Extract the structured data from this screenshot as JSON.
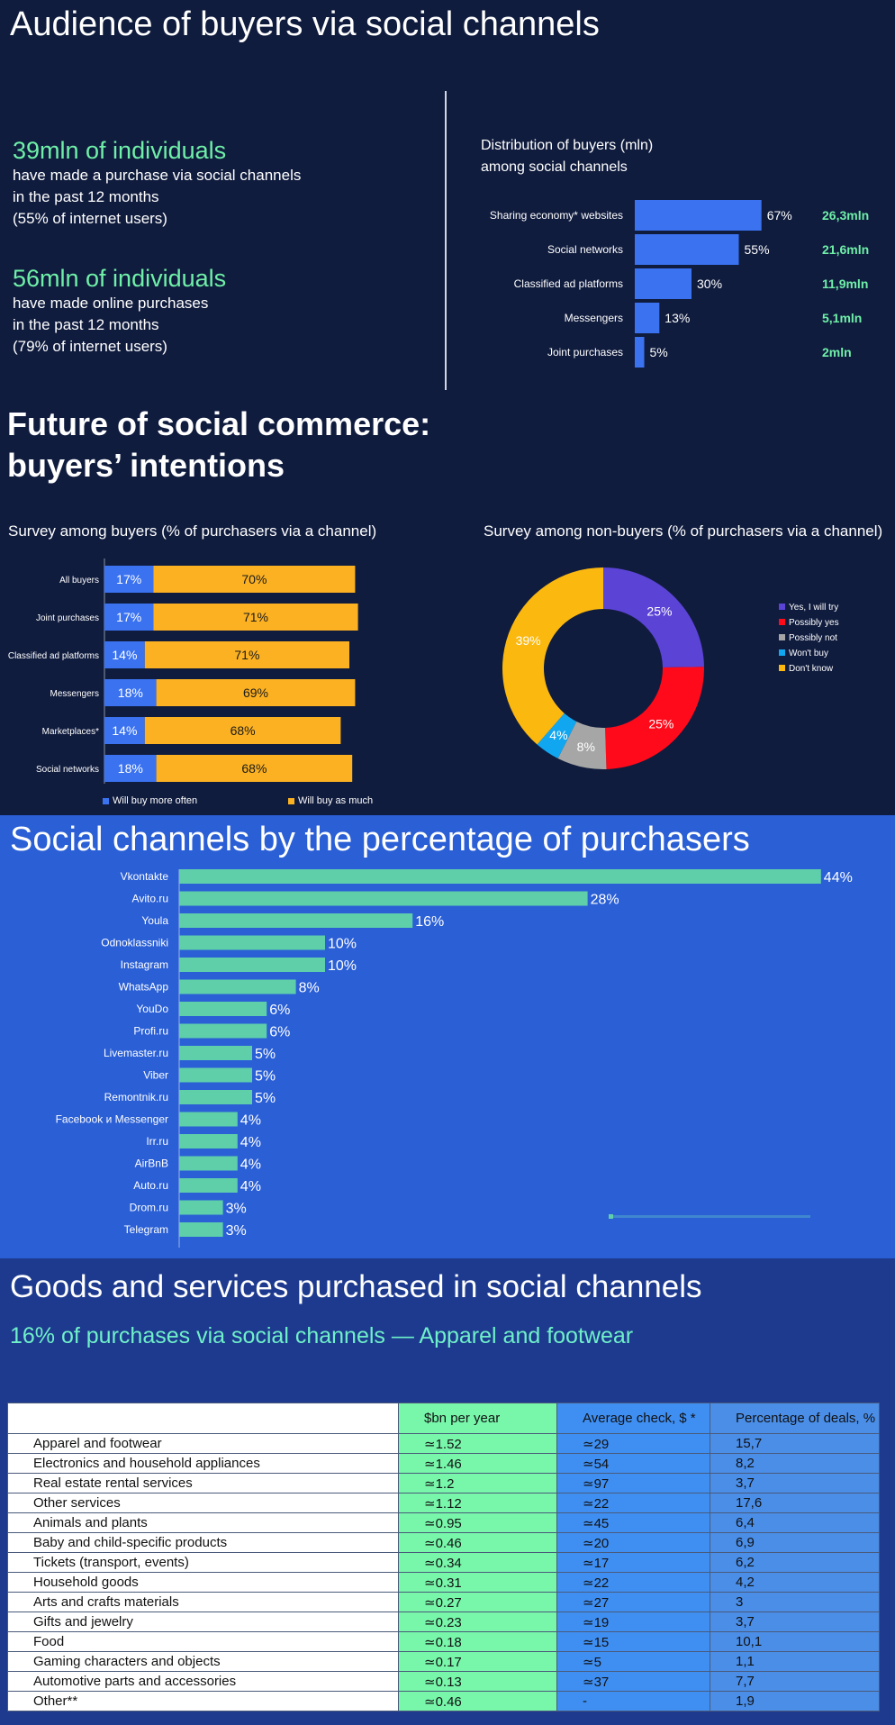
{
  "section1": {
    "title": "Audience of buyers via social channels",
    "stat1": {
      "value": "39mln of individuals",
      "line1": "have made a purchase via social channels",
      "line2": "in the past 12 months",
      "line3": "(55% of internet users)"
    },
    "stat2": {
      "value": "56mln of individuals",
      "line1": "have made online purchases",
      "line2": "in the past 12 months",
      "line3": "(79% of internet users)"
    },
    "dist_title_line1": "Distribution of buyers (mln)",
    "dist_title_line2": "among social channels"
  },
  "section2": {
    "title_line1": "Future of social commerce:",
    "title_line2": "buyers’ intentions",
    "buyers_title": "Survey among buyers (% of purchasers via a channel)",
    "nonbuyers_title": "Survey among non-buyers (% of purchasers via a channel)",
    "legend_more": "Will buy more often",
    "legend_much": "Will buy as much"
  },
  "section3": {
    "title": "Social channels by the percentage of purchasers"
  },
  "section4": {
    "title": "Goods and services purchased in social channels",
    "subtitle": "16% of purchases via social channels — Apparel and footwear",
    "table": {
      "headers": [
        "",
        "$bn per year",
        "Average check, $ *",
        "Percentage of deals, %"
      ],
      "rows": [
        [
          "Apparel and footwear",
          "≃1.52",
          "≃29",
          "15,7"
        ],
        [
          "Electronics and household appliances",
          "≃1.46",
          "≃54",
          "8,2"
        ],
        [
          "Real estate rental services",
          "≃1.2",
          "≃97",
          "3,7"
        ],
        [
          "Other services",
          "≃1.12",
          "≃22",
          "17,6"
        ],
        [
          "Animals and plants",
          "≃0.95",
          "≃45",
          "6,4"
        ],
        [
          "Baby and child-specific products",
          "≃0.46",
          "≃20",
          "6,9"
        ],
        [
          "Tickets (transport, events)",
          "≃0.34",
          "≃17",
          "6,2"
        ],
        [
          "Household goods",
          "≃0.31",
          "≃22",
          "4,2"
        ],
        [
          "Arts and crafts materials",
          "≃0.27",
          "≃27",
          "3"
        ],
        [
          "Gifts and jewelry",
          "≃0.23",
          "≃19",
          "3,7"
        ],
        [
          "Food",
          "≃0.18",
          "≃15",
          "10,1"
        ],
        [
          "Gaming characters and objects",
          "≃0.17",
          "≃5",
          "1,1"
        ],
        [
          "Automotive parts and accessories",
          "≃0.13",
          "≃37",
          "7,7"
        ],
        [
          "Other**",
          "≃0.46",
          "-",
          "1,9"
        ]
      ]
    }
  },
  "chart_data": [
    {
      "type": "bar",
      "orientation": "horizontal",
      "title": "Distribution of buyers (mln) among social channels",
      "categories": [
        "Sharing economy* websites",
        "Social networks",
        "Classified ad platforms",
        "Messengers",
        "Joint purchases"
      ],
      "values": [
        67,
        55,
        30,
        13,
        5
      ],
      "value_labels": [
        "67%",
        "55%",
        "30%",
        "13%",
        "5%"
      ],
      "secondary_labels": [
        "26,3mln",
        "21,6mln",
        "11,9mln",
        "5,1mln",
        "2mln"
      ],
      "colors": {
        "bar": "#3a72f0",
        "secondary": "#6ff0a8"
      }
    },
    {
      "type": "bar",
      "orientation": "horizontal",
      "stacked": true,
      "title": "Survey among buyers (% of purchasers via a channel)",
      "categories": [
        "All buyers",
        "Joint purchases",
        "Classified ad platforms",
        "Messengers",
        "Marketplaces*",
        "Social networks"
      ],
      "series": [
        {
          "name": "Will buy more often",
          "values": [
            17,
            17,
            14,
            18,
            14,
            18
          ],
          "color": "#3a72f0"
        },
        {
          "name": "Will buy as much",
          "values": [
            70,
            71,
            71,
            69,
            68,
            68
          ],
          "color": "#fbb122"
        }
      ],
      "legend": "bottom"
    },
    {
      "type": "pie",
      "donut": true,
      "title": "Survey among non-buyers (% of purchasers via a channel)",
      "labels": [
        "Yes, I will try",
        "Possibly yes",
        "Possibly not",
        "Won't buy",
        "Don't know"
      ],
      "values": [
        25,
        25,
        8,
        4,
        39
      ],
      "colors": [
        "#5b43d6",
        "#ff0a1a",
        "#a6a6a6",
        "#11a7f0",
        "#fbb80f"
      ],
      "legend": "right"
    },
    {
      "type": "bar",
      "orientation": "horizontal",
      "title": "Social channels by the percentage of purchasers",
      "categories": [
        "Vkontakte",
        "Avito.ru",
        "Youla",
        "Odnoklassniki",
        "Instagram",
        "WhatsApp",
        "YouDo",
        "Profi.ru",
        "Livemaster.ru",
        "Viber",
        "Remontnik.ru",
        "Facebook и Messenger",
        "Irr.ru",
        "AirBnB",
        "Auto.ru",
        "Drom.ru",
        "Telegram"
      ],
      "values": [
        44,
        28,
        16,
        10,
        10,
        8,
        6,
        6,
        5,
        5,
        5,
        4,
        4,
        4,
        4,
        3,
        3
      ],
      "value_labels": [
        "44%",
        "28%",
        "16%",
        "10%",
        "10%",
        "8%",
        "6%",
        "6%",
        "5%",
        "5%",
        "5%",
        "4%",
        "4%",
        "4%",
        "4%",
        "3%",
        "3%"
      ],
      "colors": {
        "bar": "#5fcfaa"
      }
    }
  ]
}
